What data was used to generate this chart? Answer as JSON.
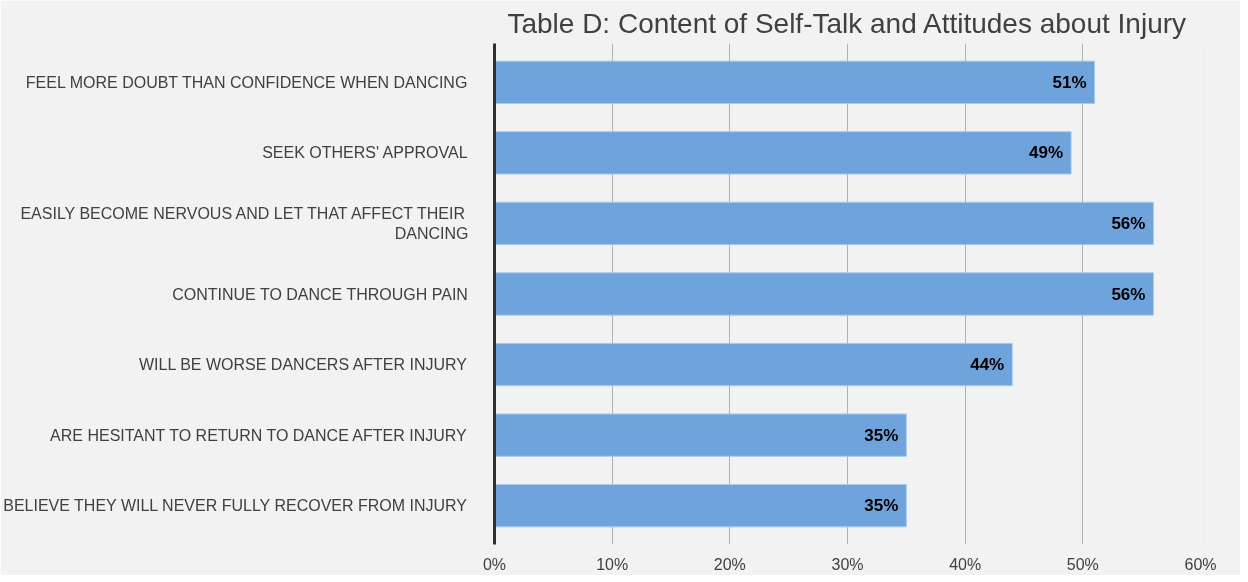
{
  "chart_data": {
    "type": "bar",
    "orientation": "horizontal",
    "title": "Table D: Content of Self-Talk and Attitudes about Injury",
    "categories": [
      "FEEL MORE DOUBT THAN CONFIDENCE WHEN DANCING",
      "SEEK OTHERS' APPROVAL",
      "EASILY BECOME NERVOUS AND LET THAT AFFECT THEIR DANCING",
      "CONTINUE TO DANCE THROUGH PAIN",
      "WILL BE WORSE DANCERS AFTER INJURY",
      "ARE HESITANT TO RETURN TO DANCE AFTER INJURY",
      "BELIEVE THEY WILL NEVER FULLY RECOVER FROM INJURY"
    ],
    "values": [
      51,
      49,
      56,
      56,
      44,
      35,
      35
    ],
    "value_labels": [
      "51%",
      "49%",
      "56%",
      "56%",
      "44%",
      "35%",
      "35%"
    ],
    "color": "#6fa3dc",
    "xlim": [
      0,
      60
    ],
    "xticks": [
      {
        "value": 0,
        "label": "0%"
      },
      {
        "value": 10,
        "label": "10%"
      },
      {
        "value": 20,
        "label": "20%"
      },
      {
        "value": 30,
        "label": "30%"
      },
      {
        "value": 40,
        "label": "40%"
      },
      {
        "value": 50,
        "label": "50%"
      },
      {
        "value": 60,
        "label": "60%"
      }
    ],
    "grid": "x"
  }
}
